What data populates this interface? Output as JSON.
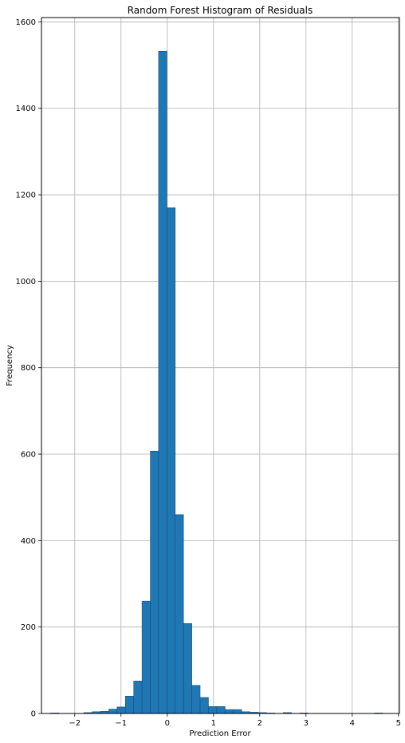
{
  "chart_data": {
    "type": "bar",
    "title": "Random Forest Histogram of Residuals",
    "xlabel": "Prediction Error",
    "ylabel": "Frequency",
    "xlim": [
      -2.72,
      5.02
    ],
    "ylim": [
      0,
      1610
    ],
    "xticks": [
      -2,
      -1,
      0,
      1,
      2,
      3,
      4,
      5
    ],
    "yticks": [
      0,
      200,
      400,
      600,
      800,
      1000,
      1200,
      1400,
      1600
    ],
    "grid": true,
    "legend": "none",
    "bar_color": "#1f77b4",
    "edge_color": "#1a4f7a",
    "bin_width": 0.1795,
    "bins": [
      {
        "left": -2.52,
        "count": 1
      },
      {
        "left": -2.341,
        "count": 0
      },
      {
        "left": -2.161,
        "count": 0
      },
      {
        "left": -1.982,
        "count": 0
      },
      {
        "left": -1.802,
        "count": 2
      },
      {
        "left": -1.623,
        "count": 4
      },
      {
        "left": -1.443,
        "count": 5
      },
      {
        "left": -1.264,
        "count": 10
      },
      {
        "left": -1.084,
        "count": 15
      },
      {
        "left": -0.905,
        "count": 40
      },
      {
        "left": -0.725,
        "count": 75
      },
      {
        "left": -0.546,
        "count": 260
      },
      {
        "left": -0.366,
        "count": 607
      },
      {
        "left": -0.187,
        "count": 1532
      },
      {
        "left": -0.007,
        "count": 1170
      },
      {
        "left": 0.172,
        "count": 460
      },
      {
        "left": 0.352,
        "count": 208
      },
      {
        "left": 0.531,
        "count": 65
      },
      {
        "left": 0.711,
        "count": 37
      },
      {
        "left": 0.89,
        "count": 16
      },
      {
        "left": 1.07,
        "count": 16
      },
      {
        "left": 1.249,
        "count": 9
      },
      {
        "left": 1.429,
        "count": 9
      },
      {
        "left": 1.608,
        "count": 4
      },
      {
        "left": 1.788,
        "count": 3
      },
      {
        "left": 1.967,
        "count": 2
      },
      {
        "left": 2.147,
        "count": 1
      },
      {
        "left": 2.326,
        "count": 0
      },
      {
        "left": 2.506,
        "count": 2
      },
      {
        "left": 2.685,
        "count": 0
      },
      {
        "left": 2.865,
        "count": 1
      },
      {
        "left": 3.044,
        "count": 0
      },
      {
        "left": 3.224,
        "count": 0
      },
      {
        "left": 3.403,
        "count": 0
      },
      {
        "left": 3.583,
        "count": 0
      },
      {
        "left": 3.762,
        "count": 0
      },
      {
        "left": 3.942,
        "count": 0
      },
      {
        "left": 4.121,
        "count": 0
      },
      {
        "left": 4.301,
        "count": 0
      },
      {
        "left": 4.48,
        "count": 1
      }
    ]
  }
}
